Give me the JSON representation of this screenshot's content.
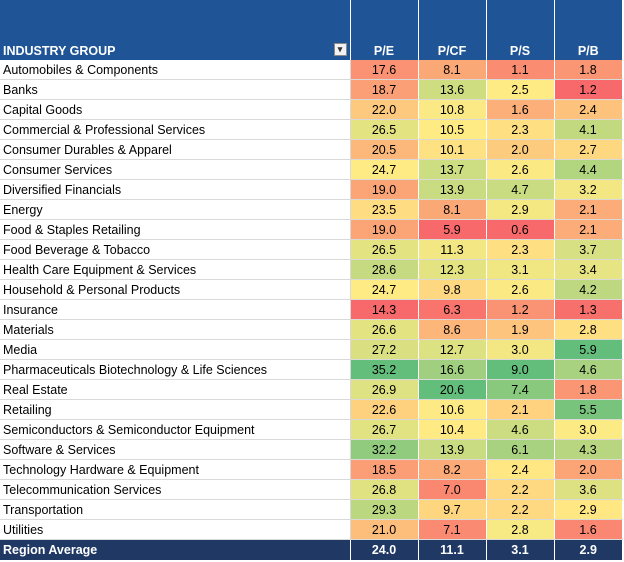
{
  "header": {
    "group_label": "INDUSTRY GROUP",
    "filter_icon": "filter-dropdown-icon",
    "metrics": [
      "P/E",
      "P/CF",
      "P/S",
      "P/B"
    ]
  },
  "rows": [
    {
      "name": "Automobiles & Components",
      "values": [
        "17.6",
        "8.1",
        "1.1",
        "1.8"
      ]
    },
    {
      "name": "Banks",
      "values": [
        "18.7",
        "13.6",
        "2.5",
        "1.2"
      ]
    },
    {
      "name": "Capital Goods",
      "values": [
        "22.0",
        "10.8",
        "1.6",
        "2.4"
      ]
    },
    {
      "name": "Commercial & Professional Services",
      "values": [
        "26.5",
        "10.5",
        "2.3",
        "4.1"
      ]
    },
    {
      "name": "Consumer Durables & Apparel",
      "values": [
        "20.5",
        "10.1",
        "2.0",
        "2.7"
      ]
    },
    {
      "name": "Consumer Services",
      "values": [
        "24.7",
        "13.7",
        "2.6",
        "4.4"
      ]
    },
    {
      "name": "Diversified Financials",
      "values": [
        "19.0",
        "13.9",
        "4.7",
        "3.2"
      ]
    },
    {
      "name": "Energy",
      "values": [
        "23.5",
        "8.1",
        "2.9",
        "2.1"
      ]
    },
    {
      "name": "Food & Staples Retailing",
      "values": [
        "19.0",
        "5.9",
        "0.6",
        "2.1"
      ]
    },
    {
      "name": "Food Beverage & Tobacco",
      "values": [
        "26.5",
        "11.3",
        "2.3",
        "3.7"
      ]
    },
    {
      "name": "Health Care Equipment & Services",
      "values": [
        "28.6",
        "12.3",
        "3.1",
        "3.4"
      ]
    },
    {
      "name": "Household & Personal Products",
      "values": [
        "24.7",
        "9.8",
        "2.6",
        "4.2"
      ]
    },
    {
      "name": "Insurance",
      "values": [
        "14.3",
        "6.3",
        "1.2",
        "1.3"
      ]
    },
    {
      "name": "Materials",
      "values": [
        "26.6",
        "8.6",
        "1.9",
        "2.8"
      ]
    },
    {
      "name": "Media",
      "values": [
        "27.2",
        "12.7",
        "3.0",
        "5.9"
      ]
    },
    {
      "name": "Pharmaceuticals Biotechnology & Life Sciences",
      "values": [
        "35.2",
        "16.6",
        "9.0",
        "4.6"
      ]
    },
    {
      "name": "Real Estate",
      "values": [
        "26.9",
        "20.6",
        "7.4",
        "1.8"
      ]
    },
    {
      "name": "Retailing",
      "values": [
        "22.6",
        "10.6",
        "2.1",
        "5.5"
      ]
    },
    {
      "name": "Semiconductors & Semiconductor Equipment",
      "values": [
        "26.7",
        "10.4",
        "4.6",
        "3.0"
      ]
    },
    {
      "name": "Software & Services",
      "values": [
        "32.2",
        "13.9",
        "6.1",
        "4.3"
      ]
    },
    {
      "name": "Technology Hardware & Equipment",
      "values": [
        "18.5",
        "8.2",
        "2.4",
        "2.0"
      ]
    },
    {
      "name": "Telecommunication Services",
      "values": [
        "26.8",
        "7.0",
        "2.2",
        "3.6"
      ]
    },
    {
      "name": "Transportation",
      "values": [
        "29.3",
        "9.7",
        "2.2",
        "2.9"
      ]
    },
    {
      "name": "Utilities",
      "values": [
        "21.0",
        "7.1",
        "2.8",
        "1.6"
      ]
    }
  ],
  "footer": {
    "name": "Region Average",
    "values": [
      "24.0",
      "11.1",
      "3.1",
      "2.9"
    ]
  },
  "colors": {
    "header_bg": "#1f5597",
    "footer_bg": "#1f3864",
    "scale_low": "#f8696b",
    "scale_mid": "#ffeb84",
    "scale_high": "#63be7b"
  }
}
